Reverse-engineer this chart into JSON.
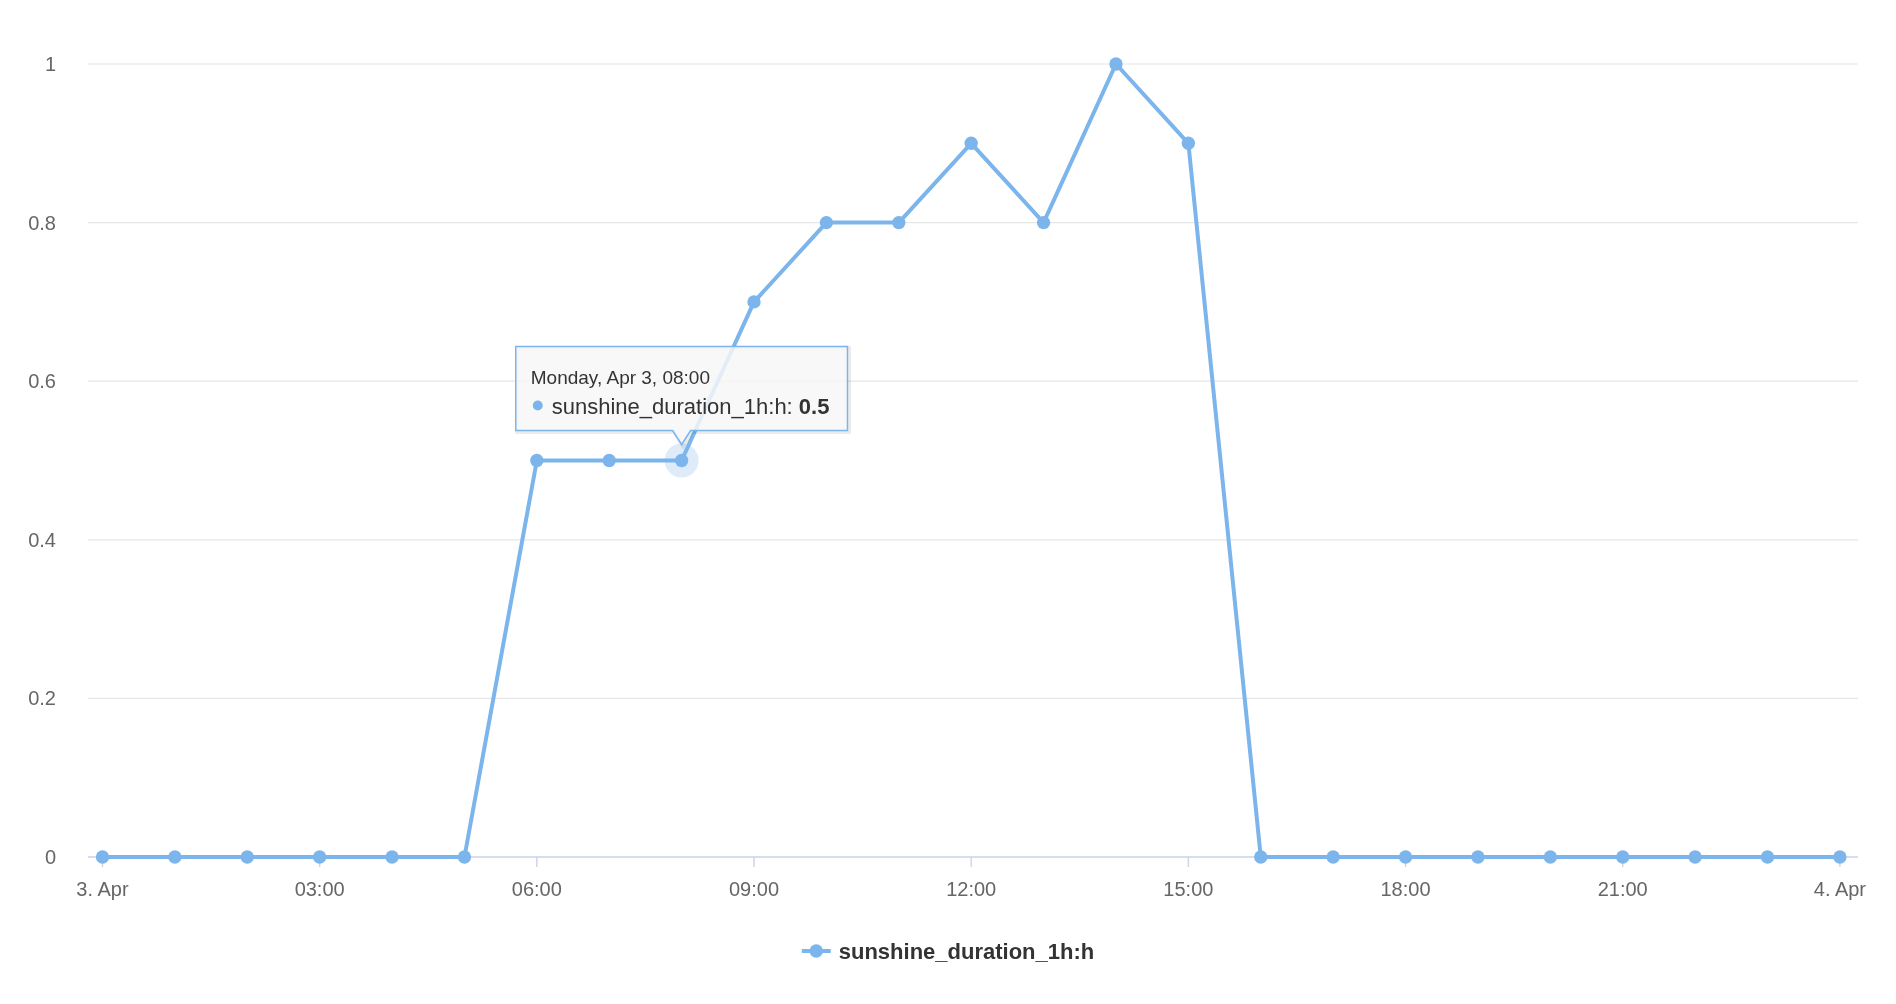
{
  "chart_data": {
    "type": "line",
    "x": [
      0,
      1,
      2,
      3,
      4,
      5,
      6,
      7,
      8,
      9,
      10,
      11,
      12,
      13,
      14,
      15,
      16,
      17,
      18,
      19,
      20,
      21,
      22,
      23,
      24
    ],
    "series": [
      {
        "name": "sunshine_duration_1h:h",
        "color": "#7cb5ec",
        "values": [
          0,
          0,
          0,
          0,
          0,
          0,
          0.5,
          0.5,
          0.5,
          0.7,
          0.8,
          0.8,
          0.9,
          0.8,
          1,
          0.9,
          0,
          0,
          0,
          0,
          0,
          0,
          0,
          0,
          0
        ]
      }
    ],
    "xlim": [
      -0.2,
      24.25
    ],
    "xticks": [
      {
        "value": 0,
        "label": "3. Apr"
      },
      {
        "value": 3,
        "label": "03:00"
      },
      {
        "value": 6,
        "label": "06:00"
      },
      {
        "value": 9,
        "label": "09:00"
      },
      {
        "value": 12,
        "label": "12:00"
      },
      {
        "value": 15,
        "label": "15:00"
      },
      {
        "value": 18,
        "label": "18:00"
      },
      {
        "value": 21,
        "label": "21:00"
      },
      {
        "value": 24,
        "label": "4. Apr"
      }
    ],
    "ylim": [
      0,
      1
    ],
    "yticks": [
      0,
      0.2,
      0.4,
      0.6,
      0.8,
      1
    ],
    "grid": "y",
    "legend": "bottom",
    "marker": "circle",
    "line_style": "solid",
    "annotations": [
      "Monday, Apr 3, 08:00",
      {
        "text": "sunshine_duration_1h:h: 0.5",
        "x": 8,
        "y": 0.5
      }
    ]
  }
}
